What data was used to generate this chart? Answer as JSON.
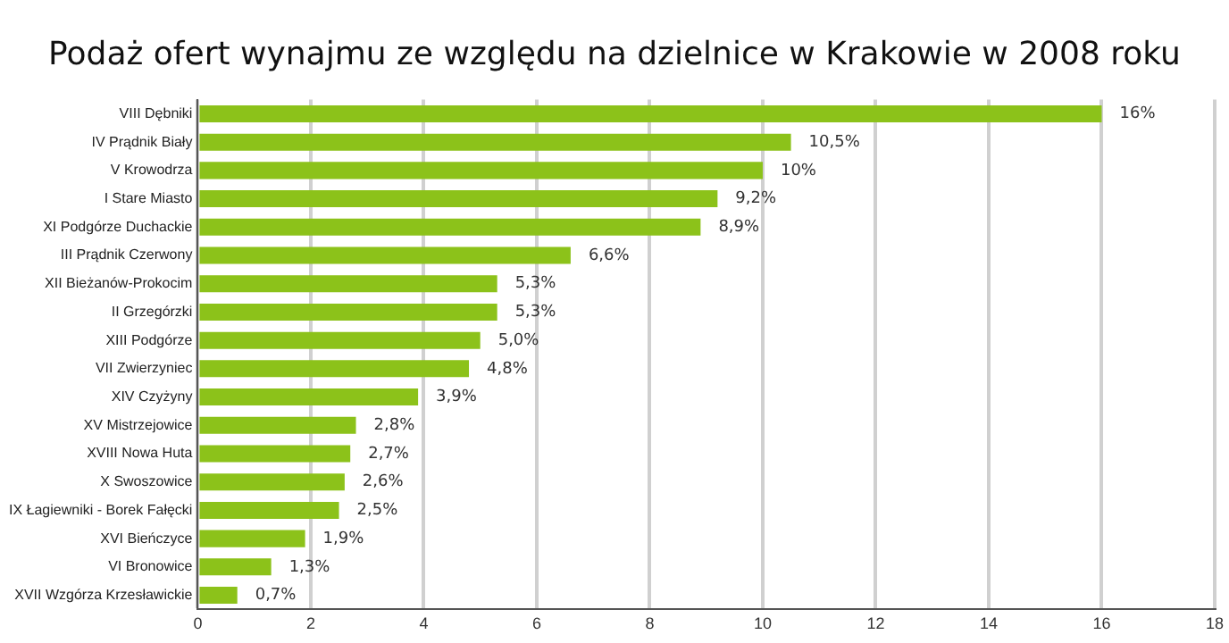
{
  "chart_data": {
    "type": "bar",
    "orientation": "horizontal",
    "title": "Podaż ofert wynajmu ze względu na dzielnice w Krakowie w 2008 roku",
    "categories": [
      "VIII Dębniki",
      "IV Prądnik Biały",
      "V Krowodrza",
      "I Stare Miasto",
      "XI Podgórze Duchackie",
      "III Prądnik Czerwony",
      "XII Bieżanów-Prokocim",
      "II Grzegórzki",
      "XIII Podgórze",
      "VII Zwierzyniec",
      "XIV Czyżyny",
      "XV Mistrzejowice",
      "XVIII Nowa Huta",
      "X Swoszowice",
      "IX Łagiewniki - Borek Fałęcki",
      "XVI Bieńczyce",
      "VI Bronowice",
      "XVII Wzgórza Krzesławickie"
    ],
    "values": [
      16,
      10.5,
      10,
      9.2,
      8.9,
      6.6,
      5.3,
      5.3,
      5.0,
      4.8,
      3.9,
      2.8,
      2.7,
      2.6,
      2.5,
      1.9,
      1.3,
      0.7
    ],
    "value_labels": [
      "16%",
      "10,5%",
      "10%",
      "9,2%",
      "8,9%",
      "6,6%",
      "5,3%",
      "5,3%",
      "5,0%",
      "4,8%",
      "3,9%",
      "2,8%",
      "2,7%",
      "2,6%",
      "2,5%",
      "1,9%",
      "1,3%",
      "0,7%"
    ],
    "color": "#8cc21a",
    "xlim": [
      0,
      18
    ],
    "xticks": [
      0,
      2,
      4,
      6,
      8,
      10,
      12,
      14,
      16,
      18
    ],
    "grid": "x",
    "legend": false
  }
}
